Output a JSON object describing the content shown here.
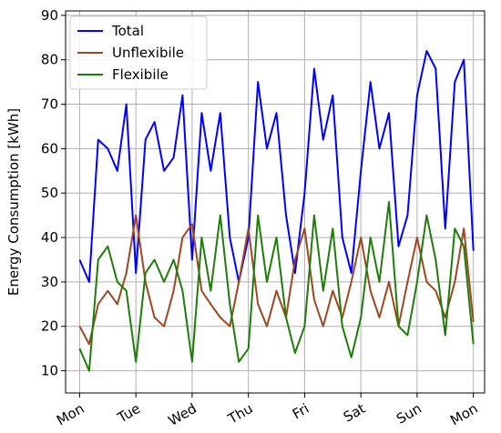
{
  "chart_data": {
    "type": "line",
    "ylabel": "Energy Consumption [kWh]",
    "x": [
      0,
      0.17,
      0.33,
      0.5,
      0.67,
      0.83,
      1,
      1.17,
      1.33,
      1.5,
      1.67,
      1.83,
      2,
      2.17,
      2.33,
      2.5,
      2.67,
      2.83,
      3,
      3.17,
      3.33,
      3.5,
      3.67,
      3.83,
      4,
      4.17,
      4.33,
      4.5,
      4.67,
      4.83,
      5,
      5.17,
      5.33,
      5.5,
      5.67,
      5.83,
      6,
      6.17,
      6.33,
      6.5,
      6.67,
      6.83,
      7
    ],
    "series": [
      {
        "name": "Total",
        "color": "#0000ff",
        "values": [
          35,
          30,
          62,
          60,
          55,
          70,
          32,
          62,
          66,
          55,
          58,
          72,
          35,
          68,
          55,
          68,
          40,
          30,
          40,
          75,
          60,
          68,
          45,
          32,
          50,
          78,
          62,
          72,
          40,
          32,
          55,
          75,
          60,
          68,
          38,
          45,
          72,
          82,
          78,
          42,
          75,
          80,
          37
        ]
      },
      {
        "name": "Unflexibile",
        "color": "#a0461e",
        "values": [
          20,
          16,
          25,
          28,
          25,
          32,
          45,
          30,
          22,
          20,
          28,
          40,
          43,
          28,
          25,
          22,
          20,
          30,
          42,
          25,
          20,
          28,
          22,
          35,
          42,
          26,
          20,
          28,
          22,
          30,
          40,
          28,
          22,
          30,
          20,
          30,
          40,
          30,
          28,
          22,
          30,
          42,
          21
        ]
      },
      {
        "name": "Flexibile",
        "color": "#1e7d0a",
        "values": [
          15,
          10,
          35,
          38,
          30,
          28,
          12,
          32,
          35,
          30,
          35,
          28,
          12,
          40,
          28,
          45,
          25,
          12,
          15,
          45,
          30,
          40,
          22,
          14,
          20,
          45,
          28,
          42,
          20,
          13,
          22,
          40,
          30,
          48,
          20,
          18,
          30,
          45,
          35,
          18,
          42,
          38,
          16
        ]
      }
    ],
    "xlim": [
      -0.25,
      7.2
    ],
    "xticks": [
      {
        "value": 0,
        "label": "Mon"
      },
      {
        "value": 1,
        "label": "Tue"
      },
      {
        "value": 2,
        "label": "Wed"
      },
      {
        "value": 3,
        "label": "Thu"
      },
      {
        "value": 4,
        "label": "Fri"
      },
      {
        "value": 5,
        "label": "Sat"
      },
      {
        "value": 6,
        "label": "Sun"
      },
      {
        "value": 7,
        "label": "Mon"
      }
    ],
    "ylim": [
      5,
      91
    ],
    "yticks": [
      10,
      20,
      30,
      40,
      50,
      60,
      70,
      80,
      90
    ],
    "grid": true,
    "legend": "upper left"
  }
}
